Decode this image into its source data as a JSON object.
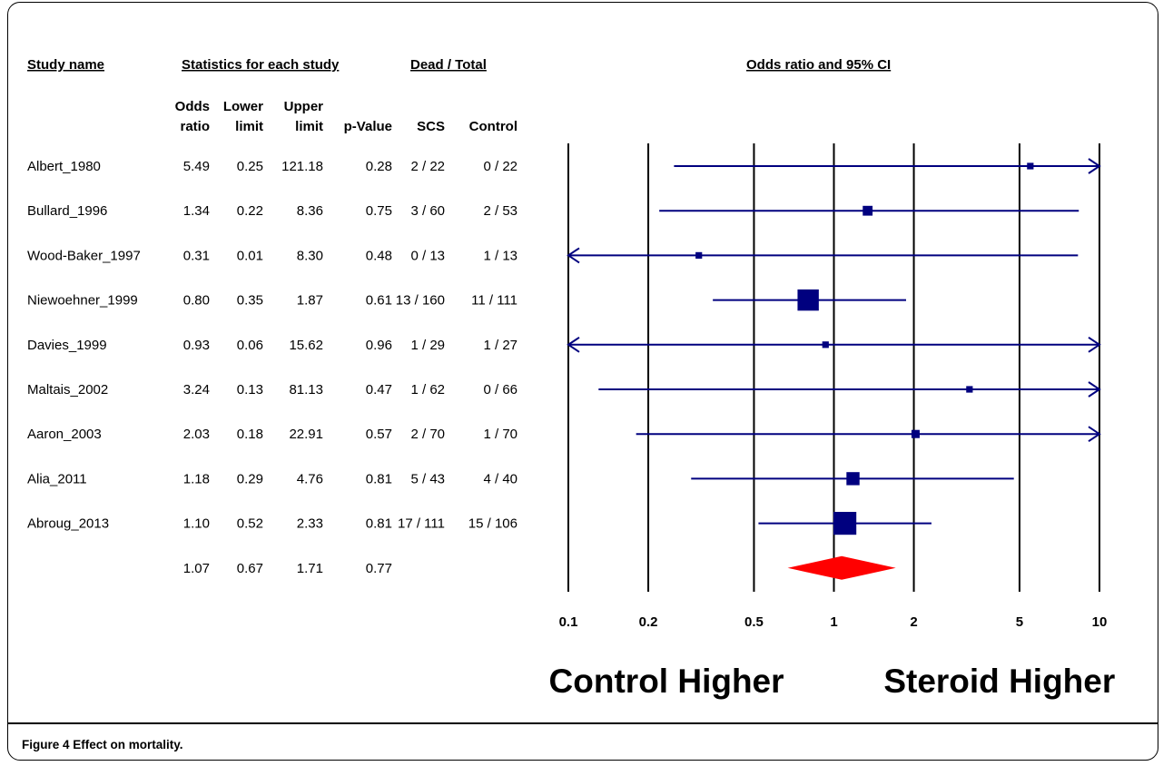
{
  "caption": "Figure 4 Effect on mortality.",
  "headers": {
    "study_name": "Study name",
    "statistics": "Statistics for each study",
    "dead_total": "Dead / Total",
    "odds_ratio_ci": "Odds ratio and 95% CI"
  },
  "subheaders": {
    "odds_ratio": [
      "Odds",
      "ratio"
    ],
    "lower_limit": [
      "Lower",
      "limit"
    ],
    "upper_limit": [
      "Upper",
      "limit"
    ],
    "p_value": "p-Value",
    "scs": "SCS",
    "control": "Control"
  },
  "chart_data": {
    "type": "forest",
    "x_scale": "log",
    "xlim": [
      0.1,
      10
    ],
    "xticks": [
      0.1,
      0.2,
      0.5,
      1,
      2,
      5,
      10
    ],
    "xtick_labels": [
      "0.1",
      "0.2",
      "0.5",
      "1",
      "2",
      "5",
      "10"
    ],
    "left_label": "Control Higher",
    "right_label": "Steroid Higher",
    "studies": [
      {
        "name": "Albert_1980",
        "or": 5.49,
        "lower": 0.25,
        "upper": 121.18,
        "or_text": "5.49",
        "lower_text": "0.25",
        "upper_text": "121.18",
        "p_text": "0.28",
        "scs": "2 / 22",
        "control": "0 / 22",
        "weight": 0.8
      },
      {
        "name": "Bullard_1996",
        "or": 1.34,
        "lower": 0.22,
        "upper": 8.36,
        "or_text": "1.34",
        "lower_text": "0.22",
        "upper_text": "8.36",
        "p_text": "0.75",
        "scs": "3 / 60",
        "control": "2 / 53",
        "weight": 1.2
      },
      {
        "name": "Wood-Baker_1997",
        "or": 0.31,
        "lower": 0.01,
        "upper": 8.3,
        "or_text": "0.31",
        "lower_text": "0.01",
        "upper_text": "8.30",
        "p_text": "0.48",
        "scs": "0 / 13",
        "control": "1 / 13",
        "weight": 0.8
      },
      {
        "name": "Niewoehner_1999",
        "or": 0.8,
        "lower": 0.35,
        "upper": 1.87,
        "or_text": "0.80",
        "lower_text": "0.35",
        "upper_text": "1.87",
        "p_text": "0.61",
        "scs": "13 / 160",
        "control": "11 / 111",
        "weight": 2.6
      },
      {
        "name": "Davies_1999",
        "or": 0.93,
        "lower": 0.06,
        "upper": 15.62,
        "or_text": "0.93",
        "lower_text": "0.06",
        "upper_text": "15.62",
        "p_text": "0.96",
        "scs": "1 / 29",
        "control": "1 / 27",
        "weight": 0.8
      },
      {
        "name": "Maltais_2002",
        "or": 3.24,
        "lower": 0.13,
        "upper": 81.13,
        "or_text": "3.24",
        "lower_text": "0.13",
        "upper_text": "81.13",
        "p_text": "0.47",
        "scs": "1 / 62",
        "control": "0 / 66",
        "weight": 0.8
      },
      {
        "name": "Aaron_2003",
        "or": 2.03,
        "lower": 0.18,
        "upper": 22.91,
        "or_text": "2.03",
        "lower_text": "0.18",
        "upper_text": "22.91",
        "p_text": "0.57",
        "scs": "2 / 70",
        "control": "1 / 70",
        "weight": 1.0
      },
      {
        "name": "Alia_2011",
        "or": 1.18,
        "lower": 0.29,
        "upper": 4.76,
        "or_text": "1.18",
        "lower_text": "0.29",
        "upper_text": "4.76",
        "p_text": "0.81",
        "scs": "5 / 43",
        "control": "4 / 40",
        "weight": 1.6
      },
      {
        "name": "Abroug_2013",
        "or": 1.1,
        "lower": 0.52,
        "upper": 2.33,
        "or_text": "1.10",
        "lower_text": "0.52",
        "upper_text": "2.33",
        "p_text": "0.81",
        "scs": "17 / 111",
        "control": "15 / 106",
        "weight": 2.8
      }
    ],
    "summary": {
      "or": 1.07,
      "lower": 0.67,
      "upper": 1.71,
      "or_text": "1.07",
      "lower_text": "0.67",
      "upper_text": "1.71",
      "p_text": "0.77"
    },
    "colors": {
      "study": "#00007f",
      "summary": "#ff0000",
      "axis": "#000000"
    }
  }
}
